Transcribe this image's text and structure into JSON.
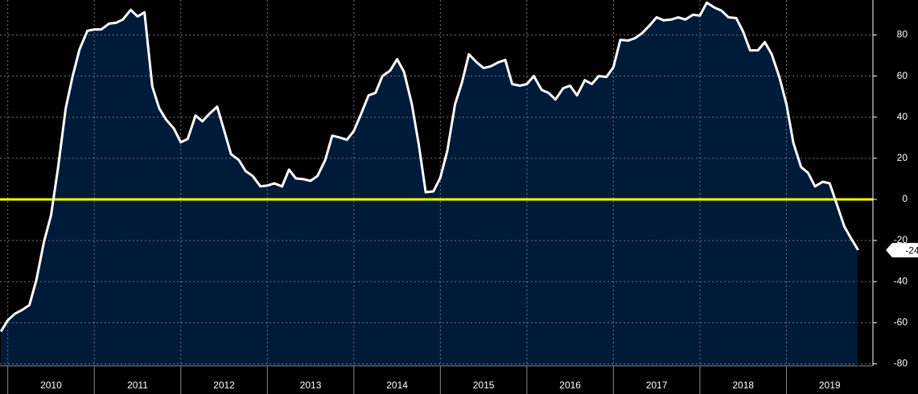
{
  "chart_data": {
    "type": "area",
    "x": [
      2009.92,
      2010.0,
      2010.08,
      2010.17,
      2010.25,
      2010.33,
      2010.42,
      2010.5,
      2010.58,
      2010.67,
      2010.75,
      2010.83,
      2010.92,
      2011.0,
      2011.08,
      2011.17,
      2011.25,
      2011.33,
      2011.42,
      2011.5,
      2011.58,
      2011.67,
      2011.75,
      2011.83,
      2011.92,
      2012.0,
      2012.08,
      2012.17,
      2012.25,
      2012.33,
      2012.42,
      2012.5,
      2012.58,
      2012.67,
      2012.75,
      2012.83,
      2012.92,
      2013.0,
      2013.08,
      2013.17,
      2013.25,
      2013.33,
      2013.42,
      2013.5,
      2013.58,
      2013.67,
      2013.75,
      2013.83,
      2013.92,
      2014.0,
      2014.08,
      2014.17,
      2014.25,
      2014.33,
      2014.42,
      2014.5,
      2014.58,
      2014.67,
      2014.75,
      2014.83,
      2014.92,
      2015.0,
      2015.08,
      2015.17,
      2015.25,
      2015.33,
      2015.42,
      2015.5,
      2015.58,
      2015.67,
      2015.75,
      2015.83,
      2015.92,
      2016.0,
      2016.08,
      2016.17,
      2016.25,
      2016.33,
      2016.42,
      2016.5,
      2016.58,
      2016.67,
      2016.75,
      2016.83,
      2016.92,
      2017.0,
      2017.08,
      2017.17,
      2017.25,
      2017.33,
      2017.42,
      2017.5,
      2017.58,
      2017.67,
      2017.75,
      2017.83,
      2017.92,
      2018.0,
      2018.08,
      2018.17,
      2018.25,
      2018.33,
      2018.42,
      2018.5,
      2018.58,
      2018.67,
      2018.75,
      2018.83,
      2018.92,
      2019.0,
      2019.08,
      2019.17,
      2019.25,
      2019.33,
      2019.42,
      2019.5,
      2019.58,
      2019.67,
      2019.75,
      2019.83
    ],
    "series": [
      {
        "color": "#ffffff",
        "fill": "#001a3a",
        "values": [
          -64.3,
          -58.8,
          -55.7,
          -53.7,
          -51.4,
          -39.2,
          -20.4,
          -7.8,
          14.9,
          44.3,
          60,
          73,
          82,
          82.7,
          82.7,
          85.5,
          85.9,
          87.5,
          92.2,
          89,
          91,
          54.9,
          44.3,
          38.8,
          34.5,
          27.8,
          29.4,
          40.8,
          38,
          41.6,
          45.1,
          33.7,
          22,
          19.2,
          13.7,
          11.4,
          6.3,
          6.7,
          7.8,
          6.3,
          14.5,
          10.2,
          9.8,
          9,
          11.4,
          19.2,
          31,
          30.2,
          29,
          33.3,
          41.2,
          50.6,
          51.8,
          60,
          62.7,
          68.2,
          62,
          46.3,
          26.7,
          3.5,
          3.9,
          10.6,
          23.5,
          46.3,
          56.9,
          70.6,
          66.7,
          63.9,
          64.7,
          66.7,
          67.8,
          56.1,
          55.3,
          56.1,
          60,
          53.3,
          51.8,
          48.6,
          54.1,
          55.3,
          50.6,
          58,
          56.1,
          60,
          59.6,
          64.3,
          77.6,
          77.3,
          78.4,
          80.8,
          84.7,
          88.6,
          87.1,
          87.5,
          88.6,
          87.5,
          89.8,
          89.4,
          95.7,
          93.3,
          91.8,
          88.6,
          88.2,
          81.6,
          72.5,
          72.5,
          76.5,
          70.6,
          59.2,
          46.3,
          27.5,
          15.7,
          12.9,
          6.3,
          8.6,
          7.8,
          -2,
          -13.3,
          -19.2,
          -24.7
        ]
      }
    ],
    "xlim": [
      2009.91,
      2020
    ],
    "xticks": [
      {
        "value": 2010,
        "label": "2010"
      },
      {
        "value": 2011,
        "label": "2011"
      },
      {
        "value": 2012,
        "label": "2012"
      },
      {
        "value": 2013,
        "label": "2013"
      },
      {
        "value": 2014,
        "label": "2014"
      },
      {
        "value": 2015,
        "label": "2015"
      },
      {
        "value": 2016,
        "label": "2016"
      },
      {
        "value": 2017,
        "label": "2017"
      },
      {
        "value": 2018,
        "label": "2018"
      },
      {
        "value": 2019,
        "label": "2019"
      }
    ],
    "ylim": [
      -81,
      97
    ],
    "yticks": [
      -80,
      -60,
      -40,
      -20,
      0,
      20,
      40,
      60,
      80
    ],
    "reference_line": {
      "value": 0,
      "color": "#ffff00"
    },
    "grid": true
  }
}
